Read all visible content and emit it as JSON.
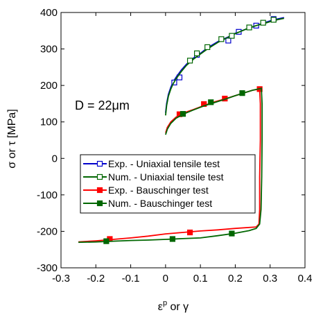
{
  "chart_data": {
    "type": "line",
    "xlabel": "ε^p or γ",
    "xlabel_base": "ε",
    "xlabel_sup": "p",
    "xlabel_rest": " or γ",
    "ylabel": "σ or τ [MPa]",
    "xlim": [
      -0.3,
      0.4
    ],
    "ylim": [
      -300,
      400
    ],
    "xticks": [
      -0.3,
      -0.2,
      -0.1,
      0,
      0.1,
      0.2,
      0.3,
      0.4
    ],
    "xtick_labels": [
      "-0.3",
      "-0.2",
      "-0.1",
      "0",
      "0.1",
      "0.2",
      "0.3",
      "0.4"
    ],
    "yticks": [
      -300,
      -200,
      -100,
      0,
      100,
      200,
      300,
      400
    ],
    "ytick_labels": [
      "-300",
      "-200",
      "-100",
      "0",
      "100",
      "200",
      "300",
      "400"
    ],
    "grid": false,
    "annotation": "D = 22μm",
    "legend_position": "center-left",
    "colors": {
      "exp_tensile": "#0000cc",
      "num_tensile": "#006600",
      "exp_bauschinger": "#ff0000",
      "num_bauschinger": "#006600",
      "tensile_marker_fill": "#ffffff"
    },
    "series": [
      {
        "name": "Exp. - Uniaxial tensile test",
        "key": "exp_tensile",
        "marker": "open-square",
        "line": [
          [
            0.0,
            125
          ],
          [
            0.003,
            150
          ],
          [
            0.008,
            175
          ],
          [
            0.015,
            195
          ],
          [
            0.022,
            210
          ],
          [
            0.03,
            222
          ],
          [
            0.045,
            242
          ],
          [
            0.06,
            258
          ],
          [
            0.08,
            275
          ],
          [
            0.1,
            288
          ],
          [
            0.12,
            303
          ],
          [
            0.15,
            320
          ],
          [
            0.18,
            333
          ],
          [
            0.2,
            343
          ],
          [
            0.23,
            354
          ],
          [
            0.26,
            364
          ],
          [
            0.29,
            374
          ],
          [
            0.31,
            380
          ],
          [
            0.34,
            386
          ]
        ],
        "markers": [
          [
            0.025,
            208
          ],
          [
            0.04,
            222
          ],
          [
            0.09,
            284
          ],
          [
            0.18,
            323
          ],
          [
            0.21,
            347
          ],
          [
            0.26,
            364
          ],
          [
            0.31,
            382
          ]
        ]
      },
      {
        "name": "Num. - Uniaxial tensile test",
        "key": "num_tensile",
        "marker": "open-square",
        "line": [
          [
            0.0,
            118
          ],
          [
            0.003,
            145
          ],
          [
            0.008,
            170
          ],
          [
            0.015,
            190
          ],
          [
            0.022,
            205
          ],
          [
            0.03,
            218
          ],
          [
            0.045,
            238
          ],
          [
            0.06,
            255
          ],
          [
            0.08,
            272
          ],
          [
            0.1,
            286
          ],
          [
            0.12,
            300
          ],
          [
            0.15,
            318
          ],
          [
            0.18,
            332
          ],
          [
            0.2,
            342
          ],
          [
            0.23,
            354
          ],
          [
            0.26,
            364
          ],
          [
            0.29,
            372
          ],
          [
            0.31,
            378
          ],
          [
            0.34,
            384
          ]
        ],
        "markers": [
          [
            0.07,
            268
          ],
          [
            0.09,
            288
          ],
          [
            0.12,
            305
          ],
          [
            0.16,
            327
          ],
          [
            0.19,
            336
          ],
          [
            0.24,
            359
          ],
          [
            0.28,
            372
          ],
          [
            0.31,
            380
          ]
        ]
      },
      {
        "name": "Exp. - Bauschinger test",
        "key": "exp_bauschinger",
        "marker": "filled-square",
        "line": [
          [
            0.0,
            70
          ],
          [
            0.005,
            85
          ],
          [
            0.015,
            100
          ],
          [
            0.03,
            113
          ],
          [
            0.05,
            124
          ],
          [
            0.08,
            134
          ],
          [
            0.11,
            145
          ],
          [
            0.14,
            155
          ],
          [
            0.17,
            163
          ],
          [
            0.2,
            172
          ],
          [
            0.23,
            181
          ],
          [
            0.25,
            187
          ],
          [
            0.27,
            190
          ],
          [
            0.272,
            150
          ],
          [
            0.272,
            50
          ],
          [
            0.27,
            -50
          ],
          [
            0.27,
            -140
          ],
          [
            0.268,
            -180
          ],
          [
            0.26,
            -188
          ],
          [
            0.2,
            -192
          ],
          [
            0.15,
            -196
          ],
          [
            0.1,
            -199
          ],
          [
            0.05,
            -203
          ],
          [
            0.0,
            -207
          ],
          [
            -0.05,
            -213
          ],
          [
            -0.1,
            -218
          ],
          [
            -0.15,
            -222
          ],
          [
            -0.2,
            -226
          ],
          [
            -0.25,
            -229
          ]
        ],
        "markers": [
          [
            0.04,
            121
          ],
          [
            0.11,
            149
          ],
          [
            0.17,
            164
          ],
          [
            0.27,
            190
          ],
          [
            0.07,
            -203
          ],
          [
            -0.16,
            -221
          ]
        ]
      },
      {
        "name": "Num. - Bauschinger test",
        "key": "num_bauschinger",
        "marker": "filled-square",
        "line": [
          [
            0.0,
            65
          ],
          [
            0.005,
            80
          ],
          [
            0.015,
            96
          ],
          [
            0.03,
            110
          ],
          [
            0.05,
            121
          ],
          [
            0.08,
            133
          ],
          [
            0.11,
            144
          ],
          [
            0.14,
            153
          ],
          [
            0.17,
            162
          ],
          [
            0.2,
            172
          ],
          [
            0.23,
            181
          ],
          [
            0.25,
            187
          ],
          [
            0.275,
            192
          ],
          [
            0.277,
            150
          ],
          [
            0.277,
            50
          ],
          [
            0.276,
            -50
          ],
          [
            0.274,
            -140
          ],
          [
            0.27,
            -180
          ],
          [
            0.26,
            -192
          ],
          [
            0.24,
            -198
          ],
          [
            0.2,
            -205
          ],
          [
            0.15,
            -212
          ],
          [
            0.1,
            -218
          ],
          [
            0.05,
            -220
          ],
          [
            0.0,
            -222
          ],
          [
            -0.05,
            -224
          ],
          [
            -0.1,
            -225
          ],
          [
            -0.15,
            -227
          ],
          [
            -0.2,
            -229
          ],
          [
            -0.25,
            -230
          ]
        ],
        "markers": [
          [
            0.05,
            122
          ],
          [
            0.13,
            154
          ],
          [
            0.22,
            179
          ],
          [
            0.19,
            -206
          ],
          [
            0.02,
            -221
          ],
          [
            -0.17,
            -227
          ]
        ]
      }
    ]
  }
}
